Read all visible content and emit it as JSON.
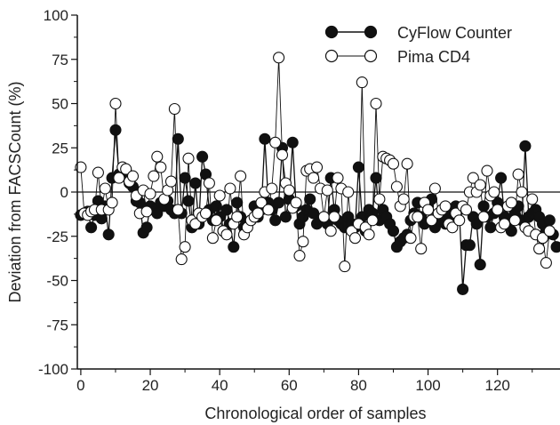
{
  "chart_data": {
    "type": "line",
    "xlabel": "Chronological order of samples",
    "ylabel": "Deviation from FACSCount (%)",
    "xlim": [
      -1,
      138
    ],
    "ylim": [
      -100,
      100
    ],
    "x_ticks": [
      0,
      20,
      40,
      60,
      80,
      100,
      120
    ],
    "y_ticks": [
      -100,
      -75,
      -50,
      -25,
      0,
      25,
      50,
      75,
      100
    ],
    "y_ticks_minor": [
      -87.5,
      -62.5,
      -37.5,
      -12.5,
      12.5,
      37.5,
      62.5,
      87.5
    ],
    "x_ticks_minor": [
      10,
      30,
      50,
      70,
      90,
      110,
      130
    ],
    "zero_line": true,
    "grid": false,
    "legend_position": "top-right",
    "series": [
      {
        "name": "CyFlow Counter",
        "marker": "filled-circle",
        "color": "#111111",
        "values": [
          -13,
          -12,
          -11,
          -20,
          -13,
          -5,
          -15,
          -8,
          -24,
          8,
          35,
          10,
          9,
          12,
          5,
          3,
          -5,
          -6,
          -23,
          -20,
          -8,
          -10,
          -12,
          -6,
          -8,
          -5,
          -10,
          -12,
          30,
          -12,
          8,
          -5,
          -20,
          5,
          -18,
          20,
          10,
          -10,
          -16,
          -8,
          -14,
          -22,
          -10,
          -18,
          -31,
          -6,
          -14,
          -20,
          -18,
          -16,
          -8,
          -14,
          -10,
          30,
          -6,
          -10,
          -16,
          -6,
          25,
          -14,
          -4,
          28,
          -8,
          -18,
          -14,
          -10,
          -4,
          -12,
          -18,
          -16,
          -14,
          -18,
          8,
          -10,
          -16,
          -18,
          -20,
          -14,
          -18,
          -20,
          14,
          -14,
          -22,
          -10,
          -12,
          8,
          -16,
          -10,
          -14,
          -18,
          -22,
          -31,
          -28,
          -26,
          -24,
          -16,
          -12,
          -6,
          -14,
          -18,
          -8,
          -4,
          -20,
          -16,
          -14,
          -18,
          -16,
          -12,
          -8,
          -10,
          -55,
          -30,
          -30,
          -14,
          -18,
          -41,
          -8,
          -14,
          -20,
          -12,
          -6,
          8,
          -14,
          -18,
          -22,
          -12,
          -8,
          -16,
          26,
          -14,
          -12,
          -10,
          -14,
          -18,
          -22,
          -16,
          -24,
          -31
        ],
        "x_start": 0
      },
      {
        "name": "Pima CD4",
        "marker": "open-circle",
        "color": "#111111",
        "values": [
          14,
          -12,
          -13,
          -11,
          -10,
          11,
          -10,
          2,
          -10,
          -6,
          50,
          8,
          14,
          13,
          6,
          9,
          -2,
          -12,
          1,
          -11,
          -1,
          9,
          20,
          14,
          -4,
          1,
          6,
          47,
          -10,
          -38,
          -31,
          19,
          -16,
          -18,
          -12,
          -14,
          -12,
          5,
          -26,
          -16,
          -2,
          -22,
          -24,
          2,
          -18,
          -14,
          9,
          -24,
          -20,
          -16,
          -14,
          -12,
          -6,
          0,
          -10,
          2,
          28,
          76,
          21,
          5,
          1,
          -9,
          -6,
          -36,
          -28,
          12,
          13,
          8,
          14,
          2,
          -14,
          1,
          -22,
          -14,
          8,
          2,
          -42,
          0,
          -22,
          -26,
          -18,
          62,
          -20,
          -24,
          -16,
          50,
          -4,
          20,
          19,
          18,
          16,
          3,
          -8,
          -4,
          16,
          -26,
          -14,
          -14,
          -32,
          -6,
          -10,
          -16,
          2,
          -12,
          -10,
          -8,
          -18,
          -20,
          -12,
          -16,
          -8,
          -10,
          0,
          8,
          0,
          4,
          -14,
          12,
          -2,
          0,
          -10,
          -20,
          -18,
          -8,
          -6,
          -16,
          10,
          0,
          -20,
          -22,
          -4,
          -24,
          -32,
          -26,
          -40,
          -22
        ],
        "x_start": 0
      }
    ]
  }
}
